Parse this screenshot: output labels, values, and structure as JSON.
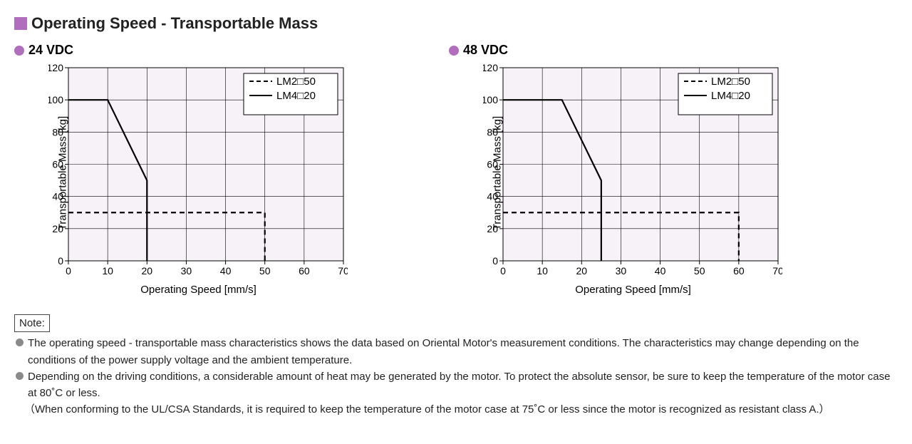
{
  "accent_color": "#b06ebc",
  "title": "Operating Speed - Transportable Mass",
  "chart_common": {
    "xlabel": "Operating Speed [mm/s]",
    "ylabel": "Transportable Mass [kg]",
    "xlim": [
      0,
      70
    ],
    "ylim": [
      0,
      120
    ],
    "xtick_step": 10,
    "ytick_step": 20,
    "plot_bg": "#f7f2f7",
    "grid_color": "#000000",
    "grid_width": 0.6,
    "axis_color": "#000000",
    "axis_width": 1,
    "line_color": "#000000",
    "solid_width": 2.2,
    "dash_width": 2.2,
    "dash_pattern": "7 5",
    "fontsize_ticks": 14,
    "fontsize_labels": 15,
    "legend": {
      "items": [
        {
          "label": "LM2□50",
          "style": "dashed"
        },
        {
          "label": "LM4□20",
          "style": "solid"
        }
      ],
      "box_border": "#000000"
    }
  },
  "charts": [
    {
      "subtitle": "24 VDC",
      "series": [
        {
          "name": "LM2□50",
          "style": "dashed",
          "points": [
            [
              0,
              30
            ],
            [
              50,
              30
            ],
            [
              50,
              0
            ]
          ]
        },
        {
          "name": "LM4□20",
          "style": "solid",
          "points": [
            [
              0,
              100
            ],
            [
              10,
              100
            ],
            [
              20,
              50
            ],
            [
              20,
              0
            ]
          ]
        }
      ]
    },
    {
      "subtitle": "48 VDC",
      "series": [
        {
          "name": "LM2□50",
          "style": "dashed",
          "points": [
            [
              0,
              30
            ],
            [
              60,
              30
            ],
            [
              60,
              0
            ]
          ]
        },
        {
          "name": "LM4□20",
          "style": "solid",
          "points": [
            [
              0,
              100
            ],
            [
              15,
              100
            ],
            [
              25,
              50
            ],
            [
              25,
              0
            ]
          ]
        }
      ]
    }
  ],
  "note": {
    "label": "Note:",
    "lines": [
      "The operating speed - transportable mass characteristics shows the data based on Oriental Motor's measurement conditions. The characteristics may change depending on the conditions of the power supply voltage and the ambient temperature.",
      "Depending on the driving conditions, a considerable amount of heat may be generated by the motor. To protect the absolute sensor, be sure to keep the temperature of the motor case at 80˚C or less."
    ],
    "paren": "（When conforming to the UL/CSA Standards, it is required to keep the temperature of the motor case at 75˚C or less since the motor is recognized as resistant class A.）"
  }
}
